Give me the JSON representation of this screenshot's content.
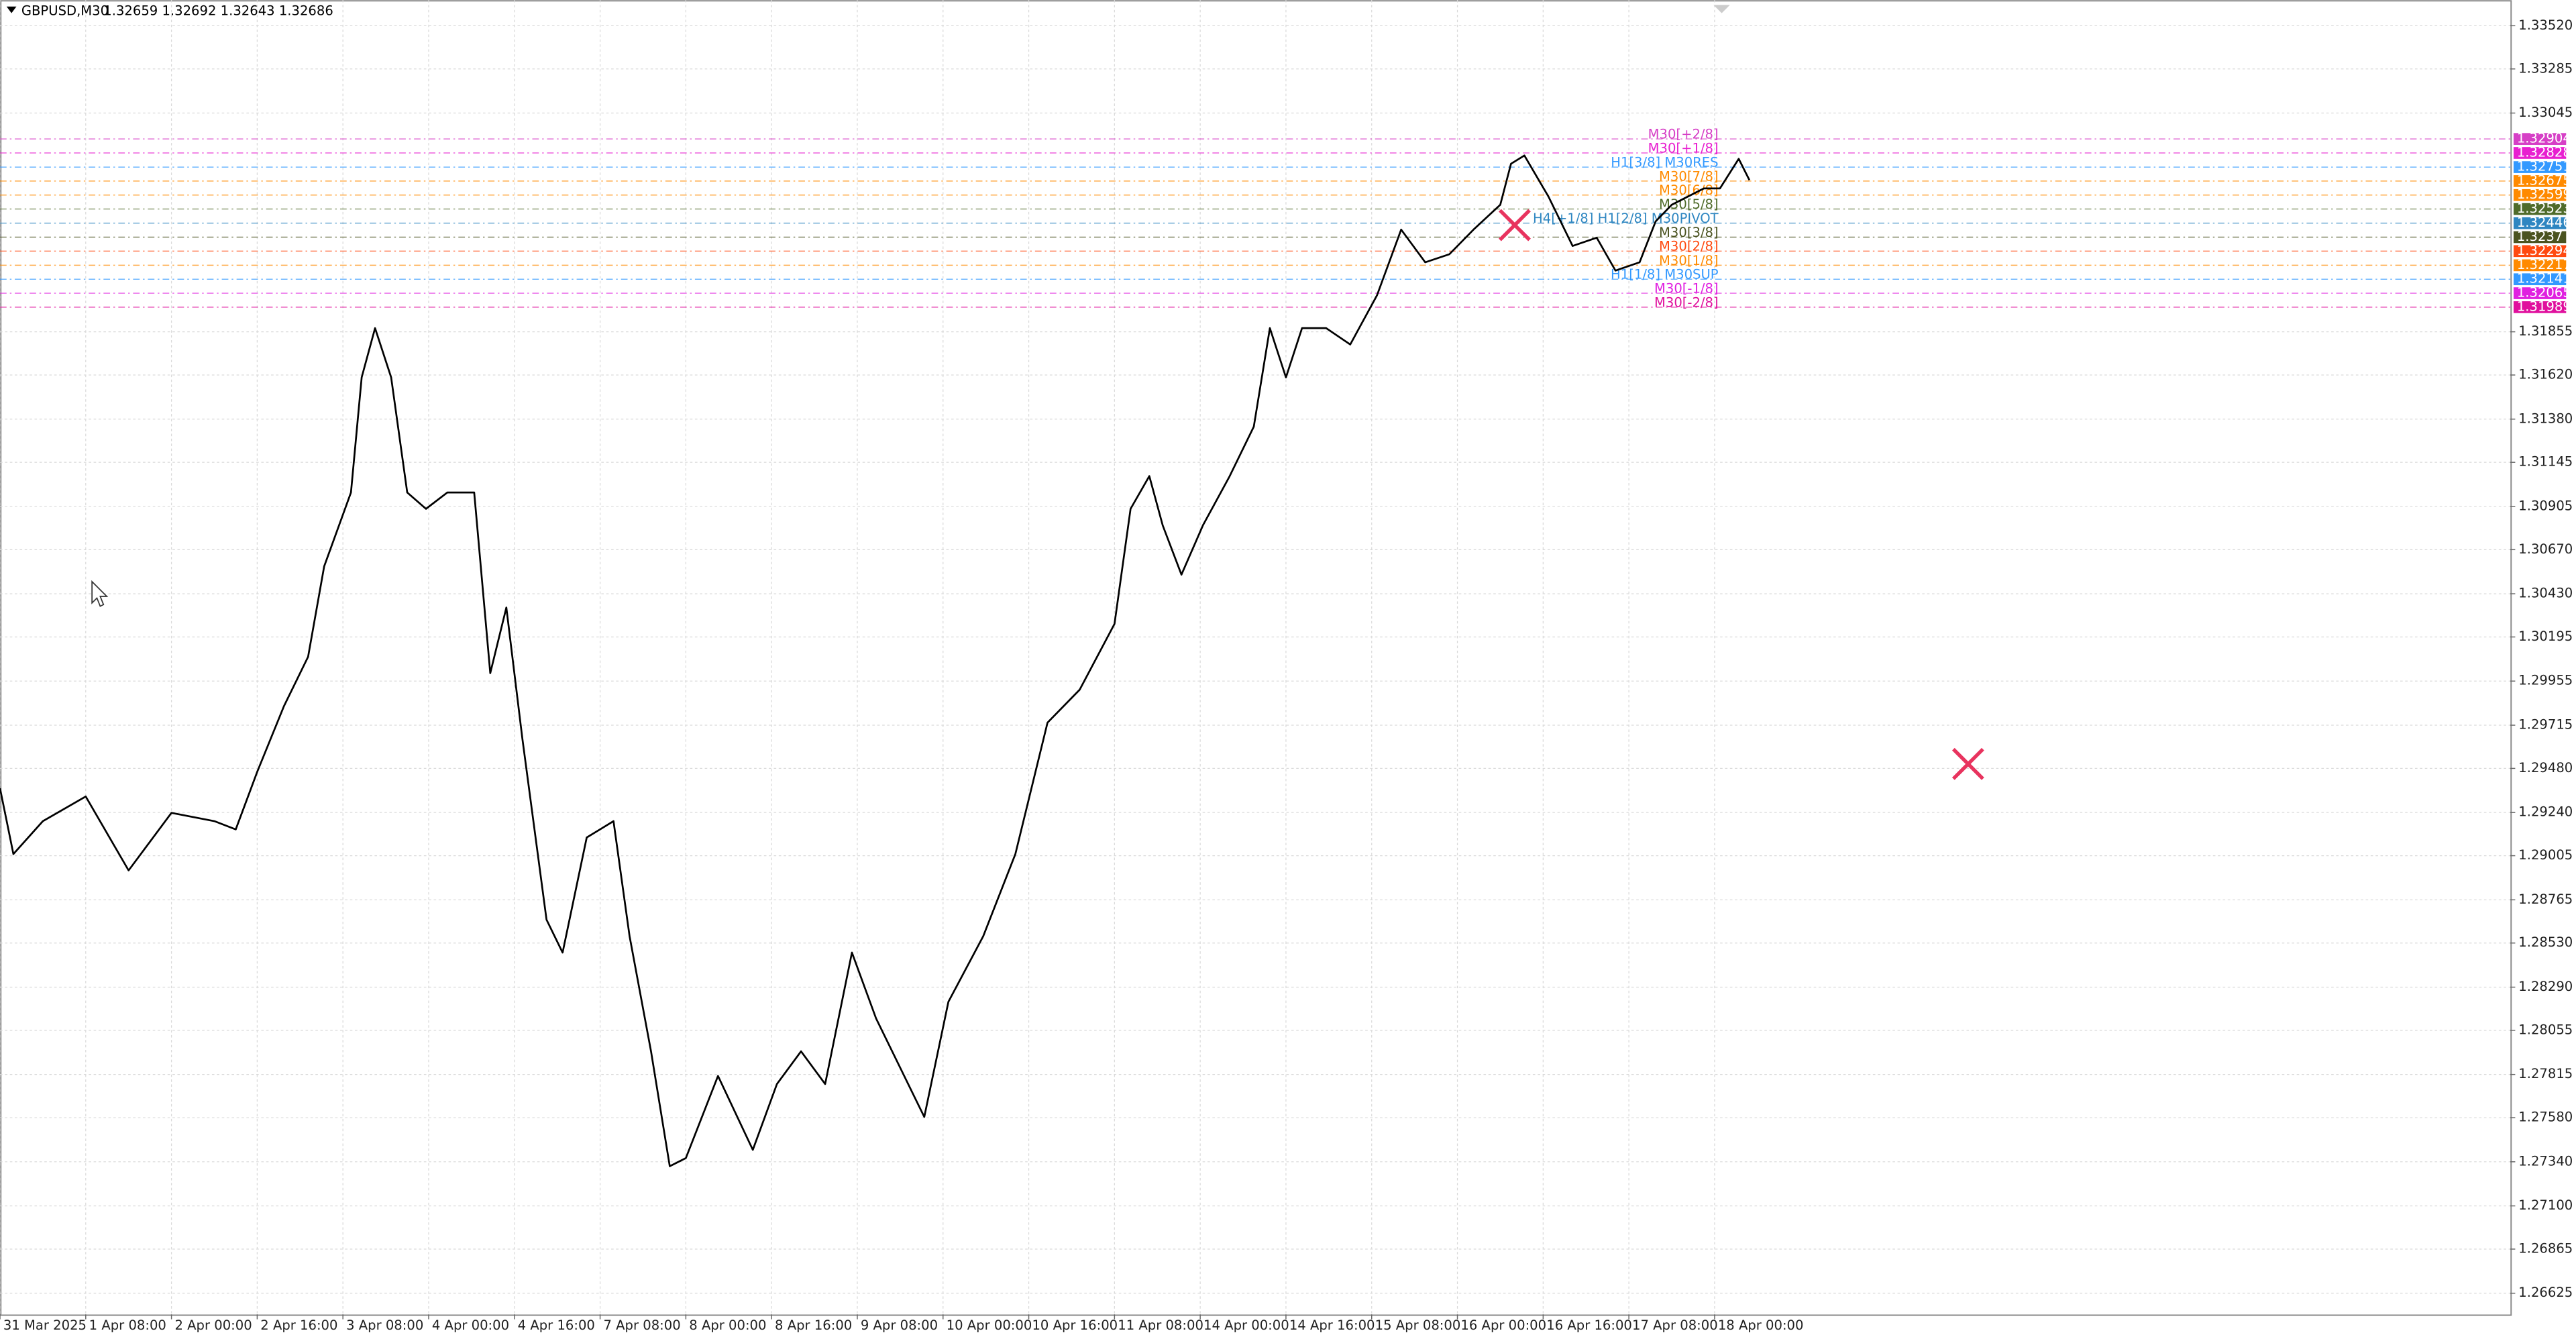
{
  "chart_data": {
    "type": "line",
    "title": "GBPUSD,M30",
    "ohlc": "1.32659 1.32692 1.32643 1.32686",
    "color": "#000000",
    "grid": true,
    "xlim": [
      0,
      937
    ],
    "ylim": [
      1.2651,
      1.3366
    ],
    "xticks": [
      {
        "value": 0,
        "label": "31 Mar 2025"
      },
      {
        "value": 32,
        "label": "1 Apr 08:00"
      },
      {
        "value": 64,
        "label": "2 Apr 00:00"
      },
      {
        "value": 96,
        "label": "2 Apr 16:00"
      },
      {
        "value": 128,
        "label": "3 Apr 08:00"
      },
      {
        "value": 160,
        "label": "4 Apr 00:00"
      },
      {
        "value": 192,
        "label": "4 Apr 16:00"
      },
      {
        "value": 224,
        "label": "7 Apr 08:00"
      },
      {
        "value": 256,
        "label": "8 Apr 00:00"
      },
      {
        "value": 288,
        "label": "8 Apr 16:00"
      },
      {
        "value": 320,
        "label": "9 Apr 08:00"
      },
      {
        "value": 352,
        "label": "10 Apr 00:00"
      },
      {
        "value": 384,
        "label": "10 Apr 16:00"
      },
      {
        "value": 416,
        "label": "11 Apr 08:00"
      },
      {
        "value": 448,
        "label": "14 Apr 00:00"
      },
      {
        "value": 480,
        "label": "14 Apr 16:00"
      },
      {
        "value": 512,
        "label": "15 Apr 08:00"
      },
      {
        "value": 544,
        "label": "16 Apr 00:00"
      },
      {
        "value": 576,
        "label": "16 Apr 16:00"
      },
      {
        "value": 608,
        "label": "17 Apr 08:00"
      },
      {
        "value": 640,
        "label": "18 Apr 00:00"
      }
    ],
    "yticks": [
      {
        "value": 1.3352,
        "label": "1.33520"
      },
      {
        "value": 1.33285,
        "label": "1.33285"
      },
      {
        "value": 1.33045,
        "label": "1.33045"
      },
      {
        "value": 1.31855,
        "label": "1.31855"
      },
      {
        "value": 1.3162,
        "label": "1.31620"
      },
      {
        "value": 1.3138,
        "label": "1.31380"
      },
      {
        "value": 1.31145,
        "label": "1.31145"
      },
      {
        "value": 1.30905,
        "label": "1.30905"
      },
      {
        "value": 1.3067,
        "label": "1.30670"
      },
      {
        "value": 1.3043,
        "label": "1.30430"
      },
      {
        "value": 1.30195,
        "label": "1.30195"
      },
      {
        "value": 1.29955,
        "label": "1.29955"
      },
      {
        "value": 1.29715,
        "label": "1.29715"
      },
      {
        "value": 1.2948,
        "label": "1.29480"
      },
      {
        "value": 1.2924,
        "label": "1.29240"
      },
      {
        "value": 1.29005,
        "label": "1.29005"
      },
      {
        "value": 1.28765,
        "label": "1.28765"
      },
      {
        "value": 1.2853,
        "label": "1.28530"
      },
      {
        "value": 1.2829,
        "label": "1.28290"
      },
      {
        "value": 1.28055,
        "label": "1.28055"
      },
      {
        "value": 1.27815,
        "label": "1.27815"
      },
      {
        "value": 1.2758,
        "label": "1.27580"
      },
      {
        "value": 1.2734,
        "label": "1.27340"
      },
      {
        "value": 1.271,
        "label": "1.27100"
      },
      {
        "value": 1.26865,
        "label": "1.26865"
      },
      {
        "value": 1.26625,
        "label": "1.26625"
      }
    ],
    "x": [
      0,
      5,
      16,
      32,
      48,
      64,
      80,
      88,
      96,
      106,
      115,
      121,
      131,
      135,
      140,
      146,
      152,
      159,
      167,
      177,
      183,
      189,
      195,
      204,
      210,
      219,
      229,
      235,
      243,
      250,
      256,
      268,
      281,
      290,
      299,
      308,
      318,
      327,
      336,
      345,
      354,
      367,
      379,
      391,
      403,
      416,
      422,
      429,
      434,
      441,
      449,
      459,
      468,
      474,
      480,
      486,
      495,
      504,
      514,
      523,
      532,
      541,
      550,
      560,
      564,
      569,
      578,
      587,
      596,
      603,
      612,
      618,
      624,
      636,
      642,
      649,
      653
    ],
    "values": [
      1.29372,
      1.29014,
      1.29193,
      1.29327,
      1.28925,
      1.29238,
      1.29193,
      1.29148,
      1.29461,
      1.29819,
      1.30087,
      1.30579,
      1.30981,
      1.31607,
      1.31875,
      1.31607,
      1.30981,
      1.30892,
      1.30981,
      1.30981,
      1.29998,
      1.30355,
      1.2964,
      1.28657,
      1.28478,
      1.29104,
      1.29193,
      1.28567,
      1.27941,
      1.27316,
      1.2736,
      1.27807,
      1.27405,
      1.27763,
      1.27941,
      1.27763,
      1.28478,
      1.2812,
      1.27852,
      1.27584,
      1.2821,
      1.28567,
      1.29014,
      1.29729,
      1.29908,
      1.30266,
      1.30892,
      1.3107,
      1.30802,
      1.30534,
      1.30802,
      1.3107,
      1.31339,
      1.31875,
      1.31607,
      1.31875,
      1.31875,
      1.31786,
      1.32054,
      1.32411,
      1.32233,
      1.32277,
      1.32411,
      1.32546,
      1.32769,
      1.32814,
      1.3259,
      1.32322,
      1.32367,
      1.32188,
      1.32233,
      1.32456,
      1.32546,
      1.32635,
      1.32635,
      1.32796,
      1.3268
    ],
    "levels": [
      {
        "value": 1.32904,
        "label": "M30[+2/8]",
        "color": "#d63fc6"
      },
      {
        "value": 1.32828,
        "label": "M30[+1/8]",
        "color": "#e81fd0"
      },
      {
        "value": 1.32751,
        "label": "H1[3/8] M30RES",
        "color": "#3399ff"
      },
      {
        "value": 1.32675,
        "label": "M30[7/8]",
        "color": "#ff8a00"
      },
      {
        "value": 1.32599,
        "label": "M30[6/8]",
        "color": "#ff8a00"
      },
      {
        "value": 1.32523,
        "label": "M30[5/8]",
        "color": "#4f6b2a"
      },
      {
        "value": 1.32446,
        "label": "H4[+1/8] H1[2/8] M30PIVOT",
        "color": "#2e86c1"
      },
      {
        "value": 1.3237,
        "label": "M30[3/8]",
        "color": "#4b5320"
      },
      {
        "value": 1.32294,
        "label": "M30[2/8]",
        "color": "#ff4a10"
      },
      {
        "value": 1.32217,
        "label": "M30[1/8]",
        "color": "#ff8a00"
      },
      {
        "value": 1.32141,
        "label": "H1[1/8] M30SUP",
        "color": "#3399ff"
      },
      {
        "value": 1.32065,
        "label": "M30[-1/8]",
        "color": "#e020e0"
      },
      {
        "value": 1.31989,
        "label": "M30[-2/8]",
        "color": "#e0109d"
      }
    ]
  }
}
